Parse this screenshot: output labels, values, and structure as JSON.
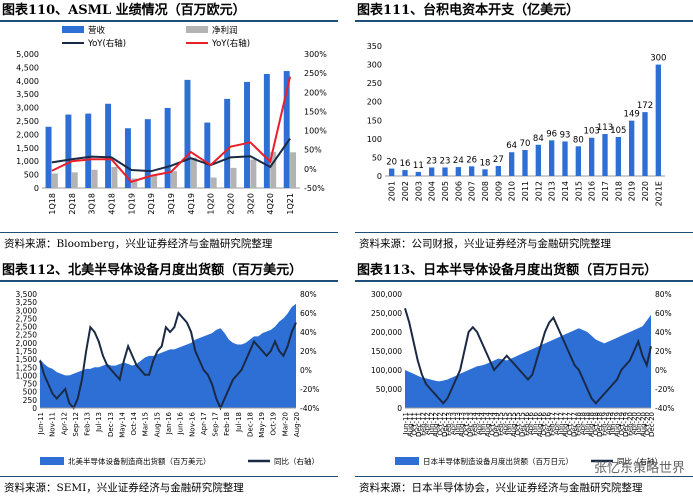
{
  "panels": [
    {
      "title": "图表110、ASML 业绩情况（百万欧元）",
      "source": "资料来源：Bloomberg，兴业证券经济与金融研究院整理"
    },
    {
      "title": "图表111、台积电资本开支（亿美元）",
      "source": "资料来源：公司财报，兴业证券经济与金融研究院整理"
    },
    {
      "title": "图表112、北美半导体设备月度出货额（百万美元）",
      "source": "资料来源：SEMI，兴业证券经济与金融研究院整理"
    },
    {
      "title": "图表113、日本半导体设备月度出货额（百万日元）",
      "source": "资料来源：日本半导体协会，兴业证券经济与金融研究院整理"
    }
  ],
  "watermark": "张忆东策略世界",
  "colors": {
    "blue": "#2e6fd6",
    "gray": "#b3b3b3",
    "navy": "#1a2a45",
    "red": "#e8202a",
    "rule": "#1f4e79"
  },
  "chart_data": [
    {
      "type": "bar",
      "categories": [
        "1Q18",
        "2Q18",
        "3Q18",
        "4Q18",
        "1Q19",
        "2Q19",
        "3Q19",
        "4Q19",
        "1Q20",
        "2Q20",
        "3Q20",
        "4Q20",
        "1Q21"
      ],
      "series": [
        {
          "name": "营收",
          "kind": "bar",
          "axis": "left",
          "values": [
            2285,
            2740,
            2776,
            3143,
            2229,
            2568,
            2987,
            4035,
            2441,
            3326,
            3958,
            4254,
            4364
          ]
        },
        {
          "name": "净利润",
          "kind": "bar",
          "axis": "left",
          "values": [
            540,
            584,
            680,
            788,
            355,
            476,
            627,
            1134,
            391,
            751,
            1061,
            1350,
            1332
          ]
        },
        {
          "name": "YoY(右轴)",
          "kind": "line",
          "axis": "right",
          "values": [
            17,
            25,
            32,
            30,
            -3,
            -6,
            8,
            28,
            10,
            30,
            33,
            5,
            79
          ]
        },
        {
          "name": "YoY(右轴)",
          "kind": "line",
          "axis": "right",
          "values": [
            -5,
            20,
            25,
            25,
            -34,
            -18,
            -8,
            44,
            10,
            58,
            69,
            19,
            241
          ]
        }
      ],
      "ylim_left": [
        0,
        5000
      ],
      "yticks_left": [
        "0",
        "500",
        "1,000",
        "1,500",
        "2,000",
        "2,500",
        "3,000",
        "3,500",
        "4,000",
        "4,500",
        "5,000"
      ],
      "ylim_right": [
        -50,
        300
      ],
      "yticks_right": [
        "-50%",
        "0%",
        "50%",
        "100%",
        "150%",
        "200%",
        "250%",
        "300%"
      ],
      "legend": "top"
    },
    {
      "type": "bar",
      "categories": [
        "2001",
        "2002",
        "2003",
        "2004",
        "2005",
        "2006",
        "2007",
        "2008",
        "2009",
        "2010",
        "2011",
        "2012",
        "2013",
        "2014",
        "2015",
        "2016",
        "2017",
        "2018",
        "2019",
        "2020",
        "2021E"
      ],
      "values": [
        20,
        16,
        11,
        23,
        23,
        24,
        26,
        18,
        27,
        64,
        70,
        84,
        96,
        93,
        80,
        103,
        113,
        105,
        149,
        172,
        300
      ],
      "ylim": [
        0,
        350
      ],
      "yticks": [
        "0",
        "50",
        "100",
        "150",
        "200",
        "250",
        "300",
        "350"
      ]
    },
    {
      "type": "area",
      "x_ticks": [
        "Jun-11",
        "Nov-11",
        "Apr-12",
        "Sep-12",
        "Feb-13",
        "Jul-13",
        "Dec-13",
        "May-14",
        "Oct-14",
        "Mar-15",
        "Aug-15",
        "Jan-16",
        "Jun-16",
        "Nov-16",
        "Apr-17",
        "Sep-17",
        "Feb-18",
        "Jul-18",
        "Dec-18",
        "May-19",
        "Oct-19",
        "Mar-20",
        "Aug-20"
      ],
      "series": [
        {
          "name": "北美半导体设备制造商出货额（百万美元）",
          "kind": "area",
          "axis": "left",
          "values": [
            1500,
            1350,
            1250,
            1200,
            1100,
            1050,
            1000,
            1000,
            1050,
            1100,
            1150,
            1200,
            1200,
            1250,
            1250,
            1300,
            1350,
            1300,
            1300,
            1350,
            1400,
            1350,
            1300,
            1350,
            1450,
            1550,
            1600,
            1600,
            1650,
            1700,
            1750,
            1800,
            1800,
            1850,
            1900,
            1950,
            2000,
            2100,
            2150,
            2200,
            2250,
            2300,
            2400,
            2450,
            2300,
            2100,
            2000,
            1950,
            1950,
            2000,
            2100,
            2200,
            2200,
            2300,
            2350,
            2400,
            2500,
            2650,
            2750,
            2900,
            3100,
            3200
          ]
        },
        {
          "name": "同比（右轴）",
          "kind": "line",
          "axis": "right",
          "values": [
            10,
            -5,
            -15,
            -25,
            -30,
            -25,
            -20,
            -35,
            -40,
            -30,
            -10,
            20,
            45,
            40,
            30,
            15,
            5,
            0,
            -5,
            -10,
            10,
            25,
            15,
            5,
            0,
            -5,
            -5,
            10,
            20,
            25,
            45,
            40,
            45,
            60,
            55,
            50,
            40,
            20,
            10,
            0,
            -5,
            -15,
            -30,
            -40,
            -30,
            -20,
            -10,
            -5,
            0,
            10,
            20,
            30,
            25,
            20,
            15,
            20,
            30,
            20,
            15,
            25,
            40,
            50
          ]
        }
      ],
      "ylim_left": [
        0,
        3500
      ],
      "yticks_left": [
        "0",
        "250",
        "500",
        "750",
        "1,000",
        "1,250",
        "1,500",
        "1,750",
        "2,000",
        "2,250",
        "2,500",
        "2,750",
        "3,000",
        "3,250",
        "3,500"
      ],
      "ylim_right": [
        -40,
        80
      ],
      "yticks_right": [
        "-40%",
        "-20%",
        "0%",
        "20%",
        "40%",
        "60%",
        "80%"
      ],
      "legend": "bottom"
    },
    {
      "type": "area",
      "x_ticks": [
        "Jun-11",
        "Aug-11",
        "Oct-11",
        "Dec-11",
        "Feb-12",
        "Apr-12",
        "Jun-12",
        "Aug-12",
        "Oct-12",
        "Dec-12",
        "Feb-13",
        "Apr-13",
        "Jun-13",
        "Aug-13",
        "Oct-13",
        "Dec-13",
        "Feb-14",
        "Apr-14",
        "Jun-14",
        "Aug-14",
        "Oct-14",
        "Dec-14",
        "Feb-15",
        "Apr-15",
        "Jun-15",
        "Aug-15",
        "Oct-15",
        "Dec-15",
        "Feb-16",
        "Apr-16",
        "Jun-16",
        "Aug-16",
        "Oct-16",
        "Dec-16",
        "Feb-17",
        "Apr-17",
        "Jun-17",
        "Aug-17",
        "Oct-17",
        "Dec-17",
        "Feb-18",
        "Apr-18",
        "Jun-18",
        "Aug-18",
        "Oct-18",
        "Dec-18",
        "Feb-19",
        "Apr-19",
        "Jun-19",
        "Aug-19",
        "Oct-19",
        "Dec-19",
        "Feb-20",
        "Apr-20",
        "Jun-20",
        "Aug-20",
        "Oct-20",
        "Dec-20"
      ],
      "series": [
        {
          "name": "日本半导体制造设备月度出货额（百万日元）",
          "kind": "area",
          "axis": "left",
          "values": [
            100000,
            95000,
            90000,
            85000,
            80000,
            78000,
            75000,
            72000,
            70000,
            72000,
            75000,
            80000,
            85000,
            90000,
            95000,
            100000,
            105000,
            110000,
            112000,
            115000,
            120000,
            125000,
            130000,
            128000,
            125000,
            130000,
            135000,
            140000,
            145000,
            150000,
            155000,
            160000,
            165000,
            170000,
            175000,
            180000,
            185000,
            190000,
            195000,
            200000,
            205000,
            210000,
            205000,
            200000,
            190000,
            180000,
            175000,
            170000,
            175000,
            180000,
            185000,
            190000,
            195000,
            200000,
            205000,
            210000,
            215000,
            230000,
            245000
          ]
        },
        {
          "name": "同比（右轴）",
          "kind": "line",
          "axis": "right",
          "values": [
            65,
            50,
            30,
            10,
            -5,
            -15,
            -20,
            -25,
            -30,
            -35,
            -30,
            -20,
            -10,
            0,
            20,
            40,
            45,
            40,
            30,
            20,
            10,
            0,
            5,
            10,
            15,
            10,
            5,
            0,
            -5,
            -10,
            -5,
            10,
            25,
            40,
            50,
            55,
            45,
            35,
            25,
            15,
            5,
            0,
            -10,
            -20,
            -30,
            -35,
            -30,
            -25,
            -20,
            -15,
            -10,
            0,
            5,
            10,
            20,
            30,
            15,
            5,
            25
          ]
        }
      ],
      "ylim_left": [
        0,
        300000
      ],
      "yticks_left": [
        "0",
        "50,000",
        "100,000",
        "150,000",
        "200,000",
        "250,000",
        "300,000"
      ],
      "ylim_right": [
        -40,
        80
      ],
      "yticks_right": [
        "-40%",
        "-20%",
        "0%",
        "20%",
        "40%",
        "60%",
        "80%"
      ],
      "legend": "bottom"
    }
  ]
}
